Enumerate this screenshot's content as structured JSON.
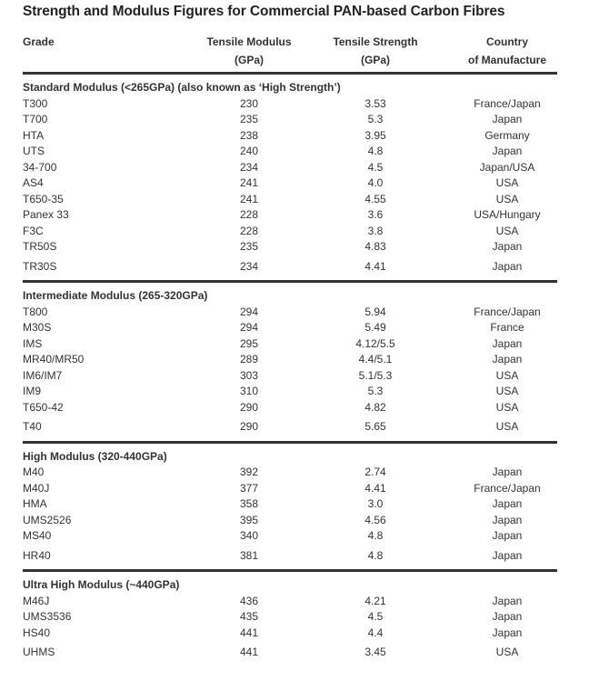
{
  "title": "Strength and Modulus Figures for Commercial PAN-based Carbon Fibres",
  "headers": {
    "grade": "Grade",
    "modulus_1": "Tensile Modulus",
    "modulus_2": "(GPa)",
    "strength_1": "Tensile Strength",
    "strength_2": "(GPa)",
    "country_1": "Country",
    "country_2": "of Manufacture"
  },
  "sections": [
    {
      "title": "Standard Modulus  (<265GPa) (also known as ‘High Strength’)",
      "rows": [
        [
          "T300",
          "230",
          "3.53",
          "France/Japan"
        ],
        [
          "T700",
          "235",
          "5.3",
          "Japan"
        ],
        [
          "HTA",
          "238",
          "3.95",
          "Germany"
        ],
        [
          "UTS",
          "240",
          "4.8",
          "Japan"
        ],
        [
          "34-700",
          "234",
          "4.5",
          "Japan/USA"
        ],
        [
          "AS4",
          "241",
          "4.0",
          "USA"
        ],
        [
          "T650-35",
          "241",
          "4.55",
          "USA"
        ],
        [
          "Panex 33",
          "228",
          "3.6",
          "USA/Hungary"
        ],
        [
          "F3C",
          "228",
          "3.8",
          "USA"
        ],
        [
          "TR50S",
          "235",
          "4.83",
          "Japan"
        ],
        [
          "TR30S",
          "234",
          "4.41",
          "Japan"
        ]
      ]
    },
    {
      "title": "Intermediate Modulus  (265-320GPa)",
      "rows": [
        [
          "T800",
          "294",
          "5.94",
          "France/Japan"
        ],
        [
          "M30S",
          "294",
          "5.49",
          "France"
        ],
        [
          "IMS",
          "295",
          "4.12/5.5",
          "Japan"
        ],
        [
          "MR40/MR50",
          "289",
          "4.4/5.1",
          "Japan"
        ],
        [
          "IM6/IM7",
          "303",
          "5.1/5.3",
          "USA"
        ],
        [
          "IM9",
          "310",
          "5.3",
          "USA"
        ],
        [
          "T650-42",
          "290",
          "4.82",
          "USA"
        ],
        [
          "T40",
          "290",
          "5.65",
          "USA"
        ]
      ]
    },
    {
      "title": "High Modulus  (320-440GPa)",
      "rows": [
        [
          "M40",
          "392",
          "2.74",
          "Japan"
        ],
        [
          "M40J",
          "377",
          "4.41",
          "France/Japan"
        ],
        [
          "HMA",
          "358",
          "3.0",
          "Japan"
        ],
        [
          "UMS2526",
          "395",
          "4.56",
          "Japan"
        ],
        [
          "MS40",
          "340",
          "4.8",
          "Japan"
        ],
        [
          "HR40",
          "381",
          "4.8",
          "Japan"
        ]
      ]
    },
    {
      "title": "Ultra High Modulus  (~440GPa)",
      "rows": [
        [
          "M46J",
          "436",
          "4.21",
          "Japan"
        ],
        [
          "UMS3536",
          "435",
          "4.5",
          "Japan"
        ],
        [
          "HS40",
          "441",
          "4.4",
          "Japan"
        ],
        [
          "UHMS",
          "441",
          "3.45",
          "USA"
        ]
      ]
    }
  ]
}
